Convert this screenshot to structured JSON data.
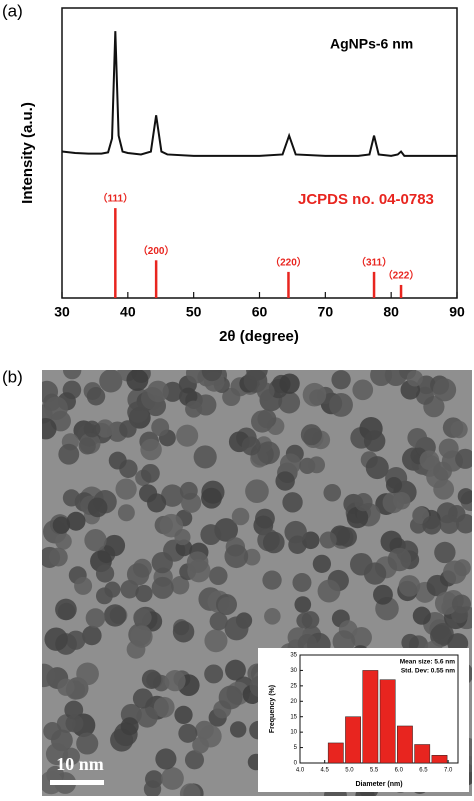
{
  "chart_data": [
    {
      "type": "line",
      "panel_label": "(a)",
      "ylabel": "Intensity (a.u.)",
      "xlabel": "2θ (degree)",
      "annotations": [
        "AgNPs-6 nm",
        "JCPDS no. 04-0783"
      ],
      "xlim": [
        30,
        90
      ],
      "xticks": [
        30,
        40,
        50,
        60,
        70,
        80,
        90
      ],
      "ylim": [
        0,
        100
      ],
      "series": [
        {
          "kind": "line",
          "color": "#111111",
          "x": [
            30,
            32,
            34,
            36,
            37,
            37.6,
            38.1,
            38.6,
            39.2,
            40,
            42,
            43.5,
            44.3,
            45.1,
            46,
            50,
            55,
            60,
            63.5,
            64.5,
            65.5,
            70,
            75,
            76.7,
            77.4,
            78.1,
            80,
            81,
            81.5,
            82,
            85,
            90
          ],
          "values": [
            50.5,
            50,
            49.8,
            49.8,
            50.2,
            55,
            92,
            56,
            50.5,
            50,
            49.5,
            50.5,
            63,
            50.5,
            49.5,
            49,
            49,
            49,
            49.5,
            56,
            49.5,
            49,
            49,
            49.5,
            56,
            49.5,
            49,
            49.5,
            50.5,
            49,
            49,
            49
          ]
        },
        {
          "kind": "stick",
          "color": "#e8251f",
          "x": [
            38.1,
            44.3,
            64.4,
            77.4,
            81.5
          ],
          "values": [
            31,
            13,
            9,
            9,
            4.5
          ],
          "labels": [
            "（111）",
            "（200）",
            "（220）",
            "（311）",
            "（222）"
          ]
        }
      ]
    },
    {
      "type": "histogram",
      "annotations": [
        "Mean size: 5.6 nm",
        "Std. Dev: 0.55 nm"
      ],
      "ylabel": "Frequency (%)",
      "xlabel": "Diameter (nm)",
      "color": "#e8251f",
      "bins": [
        4.55,
        4.9,
        5.25,
        5.6,
        5.95,
        6.3,
        6.65,
        7.0
      ],
      "values": [
        6.5,
        15,
        30,
        27,
        12,
        6,
        2.5
      ],
      "xlim": [
        4.0,
        7.2
      ],
      "xticks": [
        {
          "value": 4,
          "label": "4.0"
        },
        4.5,
        {
          "value": 5,
          "label": "5.0"
        },
        5.5,
        {
          "value": 6,
          "label": "6.0"
        },
        6.5,
        {
          "value": 7,
          "label": "7.0"
        }
      ],
      "ylim": [
        0,
        35
      ],
      "yticks": [
        0,
        5,
        10,
        15,
        20,
        25,
        30,
        35
      ]
    }
  ],
  "tem_image": {
    "panel_label": "(b)",
    "scale_bar": "10 nm"
  }
}
